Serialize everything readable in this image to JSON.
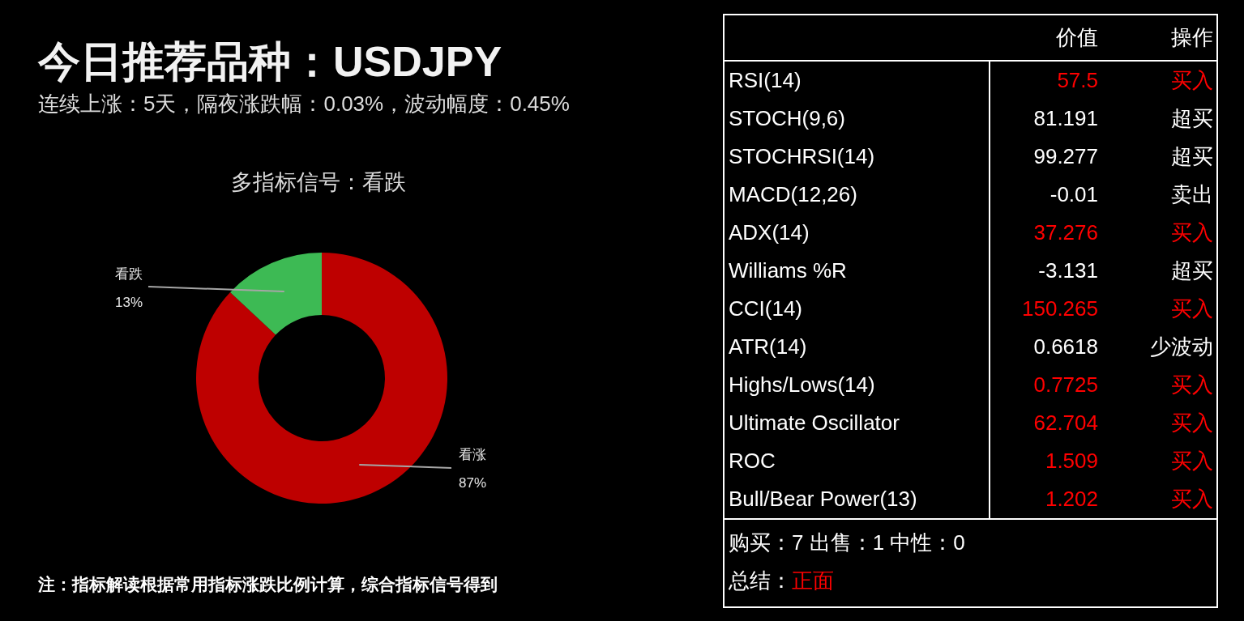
{
  "chart_data": [
    {
      "type": "other",
      "title": "今日推荐品种：USDJPY",
      "subtitle": "连续上涨：5天，隔夜涨跌幅：0.03%，波动幅度：0.45%"
    },
    {
      "type": "donut",
      "title": "多指标信号：看跌",
      "categories": [
        "看涨",
        "看跌"
      ],
      "values": [
        87,
        13
      ],
      "value_labels": [
        "87%",
        "13%"
      ],
      "colors": [
        "#be0000",
        "#3dba54"
      ],
      "annotations": [
        "注：指标解读根据常用指标涨跌比例计算，综合指标信号得到"
      ]
    },
    {
      "type": "other",
      "ylabel": "价值",
      "y2label": "操作",
      "categories": [
        "RSI(14)",
        "STOCH(9,6)",
        "STOCHRSI(14)",
        "MACD(12,26)",
        "ADX(14)",
        "Williams %R",
        "CCI(14)",
        "ATR(14)",
        "Highs/Lows(14)",
        "Ultimate Oscillator",
        "ROC",
        "Bull/Bear Power(13)"
      ],
      "values": [
        57.5,
        81.191,
        99.277,
        -0.01,
        37.276,
        -3.131,
        150.265,
        0.6618,
        0.7725,
        62.704,
        1.509,
        1.202
      ],
      "data_labels": true,
      "y2_categories": [
        "买入",
        "超买",
        "超买",
        "卖出",
        "买入",
        "超买",
        "买入",
        "少波动",
        "买入",
        "买入",
        "买入",
        "买入"
      ],
      "colors": [
        "#ff0000",
        "#ffffff",
        "#ffffff",
        "#ffffff",
        "#ff0000",
        "#ffffff",
        "#ff0000",
        "#ffffff",
        "#ff0000",
        "#ff0000",
        "#ff0000",
        "#ff0000"
      ],
      "annotations": [
        "购买：7 出售：1 中性：0",
        "总结：正面"
      ]
    }
  ]
}
